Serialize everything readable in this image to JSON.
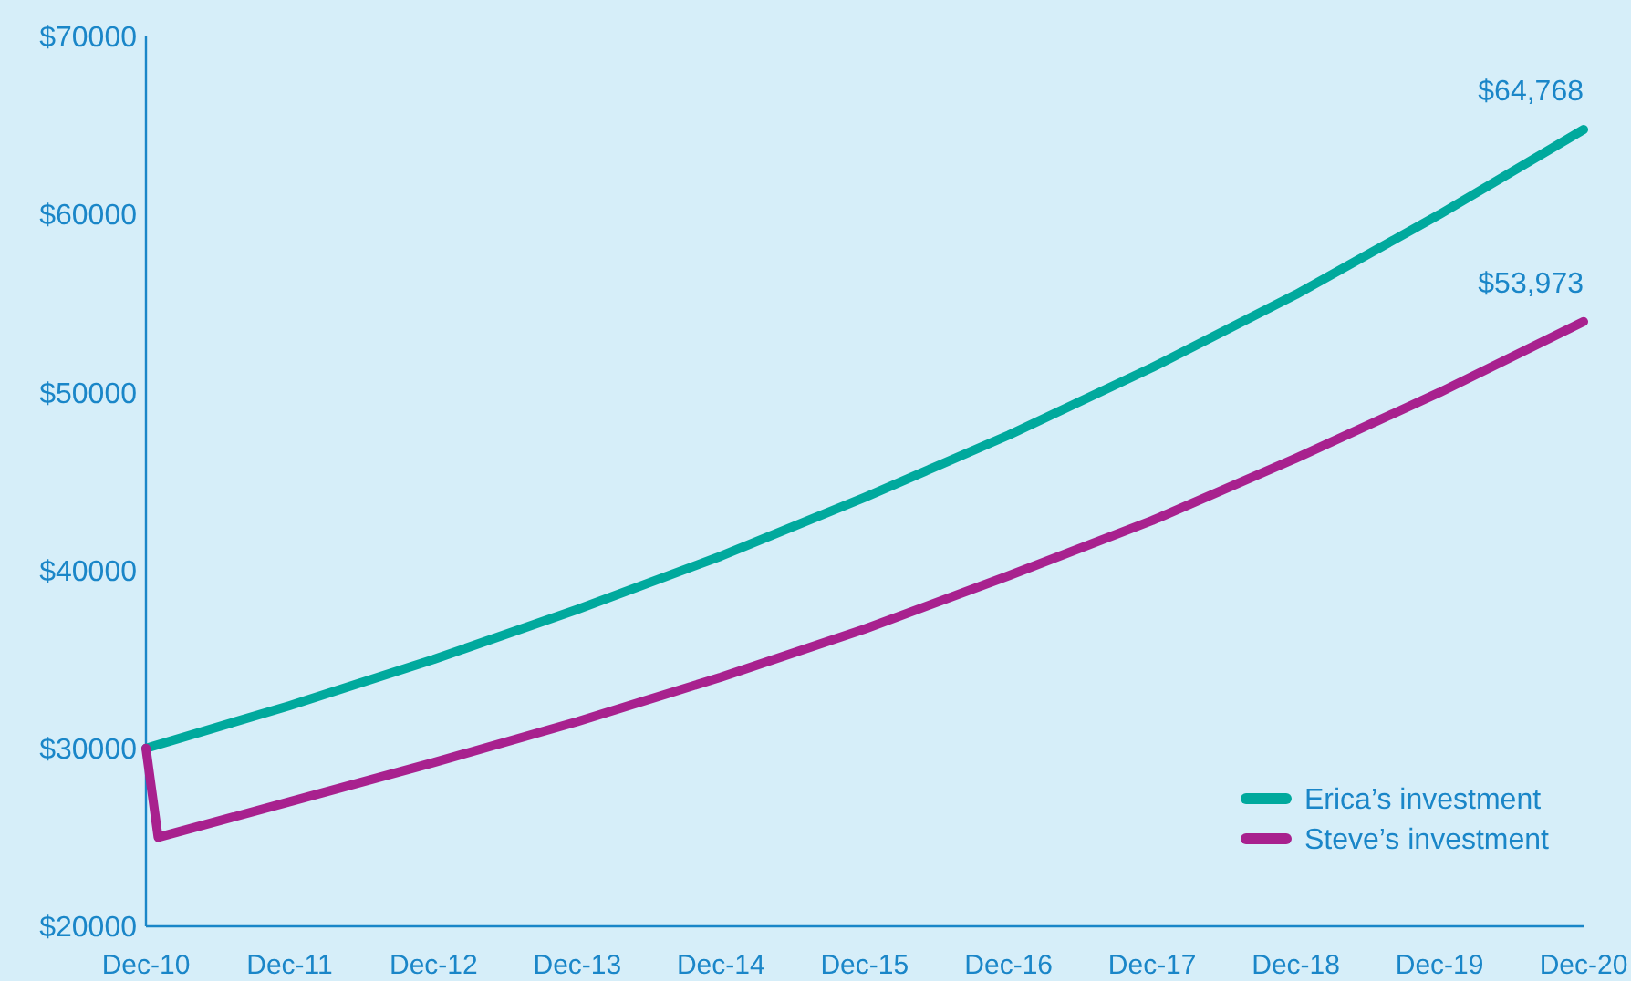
{
  "chart_data": {
    "type": "line",
    "x": [
      "2010-12",
      "2011-12",
      "2012-12",
      "2013-12",
      "2014-12",
      "2015-12",
      "2016-12",
      "2017-12",
      "2018-12",
      "2019-12",
      "2020-12"
    ],
    "xlim": [
      "2010-12",
      "2020-12"
    ],
    "xticks": [
      {
        "value": "2010-12",
        "label": "Dec-10"
      },
      {
        "value": "2011-12",
        "label": "Dec-11"
      },
      {
        "value": "2012-12",
        "label": "Dec-12"
      },
      {
        "value": "2013-12",
        "label": "Dec-13"
      },
      {
        "value": "2014-12",
        "label": "Dec-14"
      },
      {
        "value": "2015-12",
        "label": "Dec-15"
      },
      {
        "value": "2016-12",
        "label": "Dec-16"
      },
      {
        "value": "2017-12",
        "label": "Dec-17"
      },
      {
        "value": "2018-12",
        "label": "Dec-18"
      },
      {
        "value": "2019-12",
        "label": "Dec-19"
      },
      {
        "value": "2020-12",
        "label": "Dec-20"
      }
    ],
    "ylim": [
      20000,
      70000
    ],
    "yticks": [
      {
        "value": 20000,
        "label": "$20000"
      },
      {
        "value": 30000,
        "label": "$30000"
      },
      {
        "value": 40000,
        "label": "$40000"
      },
      {
        "value": 50000,
        "label": "$50000"
      },
      {
        "value": 60000,
        "label": "$60000"
      },
      {
        "value": 70000,
        "label": "$70000"
      }
    ],
    "series": [
      {
        "name": "Erica’s investment",
        "color": "#00a99d",
        "values": [
          30000,
          32400,
          35000,
          37800,
          40800,
          44100,
          47600,
          51400,
          55500,
          60000,
          64768
        ]
      },
      {
        "name": "Steve’s investment",
        "color": "#a8218e",
        "x": [
          "2010-12",
          "2011-01",
          "2011-12",
          "2012-12",
          "2013-12",
          "2014-12",
          "2015-12",
          "2016-12",
          "2017-12",
          "2018-12",
          "2019-12",
          "2020-12"
        ],
        "values": [
          30000,
          25000,
          27000,
          29200,
          31500,
          34000,
          36700,
          39700,
          42800,
          46300,
          50000,
          53973
        ]
      }
    ],
    "annotations": [
      {
        "text": "$64,768",
        "x": "2020-12",
        "y": 64768
      },
      {
        "text": "$53,973",
        "x": "2020-12",
        "y": 53973
      }
    ],
    "legend": "bottom right",
    "grid": false,
    "marker": "none",
    "line_style": "solid"
  }
}
